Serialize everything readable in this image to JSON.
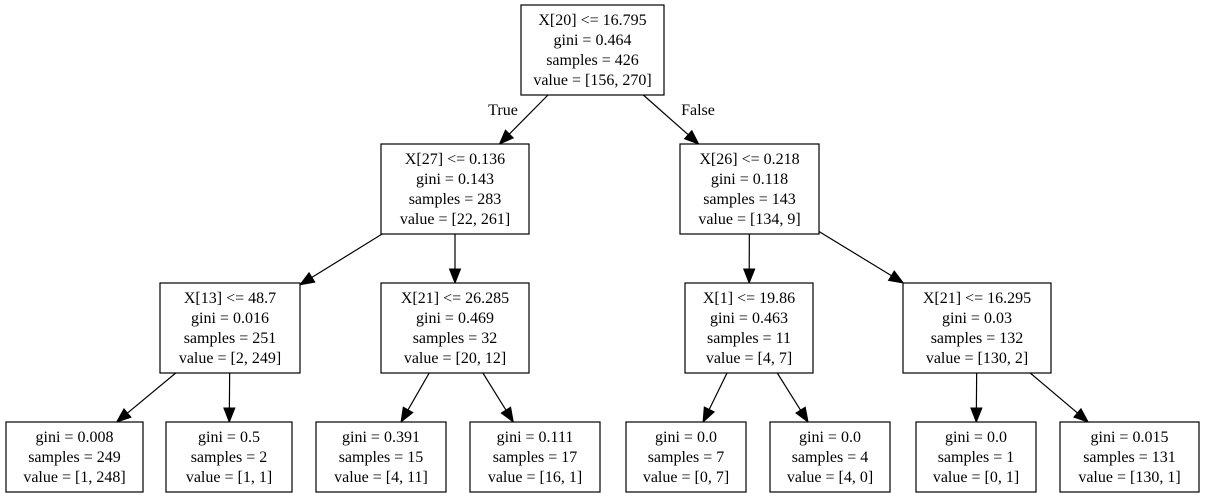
{
  "tree": {
    "nodes": [
      {
        "id": "n0",
        "lines": [
          "X[20] <= 16.795",
          "gini = 0.464",
          "samples = 426",
          "value = [156, 270]"
        ]
      },
      {
        "id": "n1",
        "lines": [
          "X[27] <= 0.136",
          "gini = 0.143",
          "samples = 283",
          "value = [22, 261]"
        ]
      },
      {
        "id": "n2",
        "lines": [
          "X[26] <= 0.218",
          "gini = 0.118",
          "samples = 143",
          "value = [134, 9]"
        ]
      },
      {
        "id": "n3",
        "lines": [
          "X[13] <= 48.7",
          "gini = 0.016",
          "samples = 251",
          "value = [2, 249]"
        ]
      },
      {
        "id": "n4",
        "lines": [
          "X[21] <= 26.285",
          "gini = 0.469",
          "samples = 32",
          "value = [20, 12]"
        ]
      },
      {
        "id": "n5",
        "lines": [
          "X[1] <= 19.86",
          "gini = 0.463",
          "samples = 11",
          "value = [4, 7]"
        ]
      },
      {
        "id": "n6",
        "lines": [
          "X[21] <= 16.295",
          "gini = 0.03",
          "samples = 132",
          "value = [130, 2]"
        ]
      },
      {
        "id": "n7",
        "lines": [
          "gini = 0.008",
          "samples = 249",
          "value = [1, 248]"
        ]
      },
      {
        "id": "n8",
        "lines": [
          "gini = 0.5",
          "samples = 2",
          "value = [1, 1]"
        ]
      },
      {
        "id": "n9",
        "lines": [
          "gini = 0.391",
          "samples = 15",
          "value = [4, 11]"
        ]
      },
      {
        "id": "n10",
        "lines": [
          "gini = 0.111",
          "samples = 17",
          "value = [16, 1]"
        ]
      },
      {
        "id": "n11",
        "lines": [
          "gini = 0.0",
          "samples = 7",
          "value = [0, 7]"
        ]
      },
      {
        "id": "n12",
        "lines": [
          "gini = 0.0",
          "samples = 4",
          "value = [4, 0]"
        ]
      },
      {
        "id": "n13",
        "lines": [
          "gini = 0.0",
          "samples = 1",
          "value = [0, 1]"
        ]
      },
      {
        "id": "n14",
        "lines": [
          "gini = 0.015",
          "samples = 131",
          "value = [130, 1]"
        ]
      }
    ],
    "edges": [
      {
        "from": "n0",
        "to": "n1",
        "label": "True"
      },
      {
        "from": "n0",
        "to": "n2",
        "label": "False"
      },
      {
        "from": "n1",
        "to": "n3"
      },
      {
        "from": "n1",
        "to": "n4"
      },
      {
        "from": "n2",
        "to": "n5"
      },
      {
        "from": "n2",
        "to": "n6"
      },
      {
        "from": "n3",
        "to": "n7"
      },
      {
        "from": "n3",
        "to": "n8"
      },
      {
        "from": "n4",
        "to": "n9"
      },
      {
        "from": "n4",
        "to": "n10"
      },
      {
        "from": "n5",
        "to": "n11"
      },
      {
        "from": "n5",
        "to": "n12"
      },
      {
        "from": "n6",
        "to": "n13"
      },
      {
        "from": "n6",
        "to": "n14"
      }
    ]
  }
}
